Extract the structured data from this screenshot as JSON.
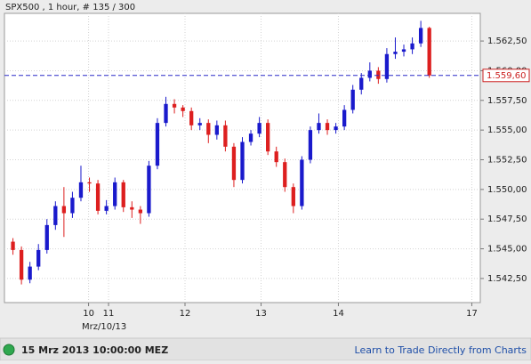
{
  "chart_data": {
    "type": "candlestick",
    "title": "SPX500 , 1 hour, # 135 / 300",
    "date_label": "Mrz/10/13",
    "footer_time": "15 Mrz 2013 10:00:00 MEZ",
    "footer_link": "Learn to Trade Directly from Charts",
    "up_color": "#1a1acc",
    "down_color": "#dd1f1f",
    "grid": true,
    "last_price": {
      "value": 1559.6,
      "label": "1.559,60"
    },
    "xlim": [
      -1,
      55
    ],
    "xticks": [
      {
        "value": 8.9,
        "label": "10"
      },
      {
        "value": 11.25,
        "label": "11"
      },
      {
        "value": 20.25,
        "label": "12"
      },
      {
        "value": 29.2,
        "label": "13"
      },
      {
        "value": 38.3,
        "label": "14"
      },
      {
        "value": 54,
        "label": "17"
      }
    ],
    "ylim": [
      1540.47,
      1564.83
    ],
    "yticks": [
      {
        "value": 1542.5,
        "label": "1.542,50"
      },
      {
        "value": 1545,
        "label": "1.545,00"
      },
      {
        "value": 1547.5,
        "label": "1.547,50"
      },
      {
        "value": 1550,
        "label": "1.550,00"
      },
      {
        "value": 1552.5,
        "label": "1.552,50"
      },
      {
        "value": 1555,
        "label": "1.555,00"
      },
      {
        "value": 1557.5,
        "label": "1.557,50"
      },
      {
        "value": 1560,
        "label": "1.560,00"
      },
      {
        "value": 1562.5,
        "label": "1.562,50"
      }
    ],
    "open": [
      1545.6,
      1544.9,
      1542.4,
      1543.5,
      1544.9,
      1547.0,
      1548.6,
      1548.0,
      1549.3,
      1550.6,
      1550.5,
      1548.2,
      1548.6,
      1550.6,
      1548.5,
      1548.3,
      1548.0,
      1552.0,
      1555.6,
      1557.2,
      1556.9,
      1556.6,
      1555.4,
      1555.6,
      1554.6,
      1555.4,
      1553.6,
      1550.8,
      1554.0,
      1554.7,
      1555.6,
      1553.2,
      1552.3,
      1550.2,
      1548.6,
      1552.5,
      1555.0,
      1555.6,
      1555.0,
      1555.3,
      1556.7,
      1558.4,
      1559.4,
      1560.0,
      1559.3,
      1561.4,
      1561.6,
      1561.8,
      1562.3,
      1563.6
    ],
    "high": [
      1545.9,
      1545.2,
      1543.9,
      1545.4,
      1547.5,
      1549.0,
      1550.2,
      1549.8,
      1552.0,
      1551.0,
      1550.8,
      1549.1,
      1551.0,
      1550.8,
      1549.0,
      1548.6,
      1552.4,
      1556.0,
      1557.8,
      1557.6,
      1557.1,
      1556.9,
      1556.0,
      1555.9,
      1555.8,
      1555.8,
      1553.9,
      1554.4,
      1555.0,
      1556.1,
      1555.9,
      1553.6,
      1552.6,
      1550.5,
      1552.8,
      1555.3,
      1556.4,
      1555.9,
      1555.6,
      1557.1,
      1558.8,
      1559.8,
      1560.7,
      1560.3,
      1561.9,
      1562.8,
      1562.2,
      1562.8,
      1564.2,
      1563.7
    ],
    "low": [
      1544.5,
      1542.0,
      1542.1,
      1543.2,
      1544.6,
      1546.6,
      1546.0,
      1547.6,
      1549.0,
      1549.8,
      1547.9,
      1547.9,
      1548.3,
      1548.1,
      1547.6,
      1547.1,
      1547.7,
      1551.7,
      1555.3,
      1556.4,
      1556.1,
      1555.0,
      1555.0,
      1553.9,
      1554.2,
      1553.2,
      1550.2,
      1550.5,
      1553.7,
      1554.4,
      1552.9,
      1551.9,
      1549.8,
      1548.0,
      1548.3,
      1552.2,
      1554.7,
      1554.6,
      1554.7,
      1555.0,
      1556.4,
      1558.0,
      1559.1,
      1558.9,
      1559.0,
      1561.0,
      1561.2,
      1561.4,
      1562.0,
      1559.4
    ],
    "close": [
      1544.9,
      1542.4,
      1543.5,
      1544.9,
      1547.0,
      1548.6,
      1548.0,
      1549.3,
      1550.6,
      1550.5,
      1548.2,
      1548.6,
      1550.6,
      1548.5,
      1548.3,
      1548.0,
      1552.0,
      1555.6,
      1557.2,
      1556.9,
      1556.6,
      1555.4,
      1555.6,
      1554.6,
      1555.4,
      1553.6,
      1550.8,
      1554.0,
      1554.7,
      1555.6,
      1553.2,
      1552.3,
      1550.2,
      1548.6,
      1552.5,
      1555.0,
      1555.6,
      1555.0,
      1555.3,
      1556.7,
      1558.4,
      1559.4,
      1560.0,
      1559.3,
      1561.4,
      1561.6,
      1561.8,
      1562.3,
      1563.6,
      1559.6
    ]
  }
}
